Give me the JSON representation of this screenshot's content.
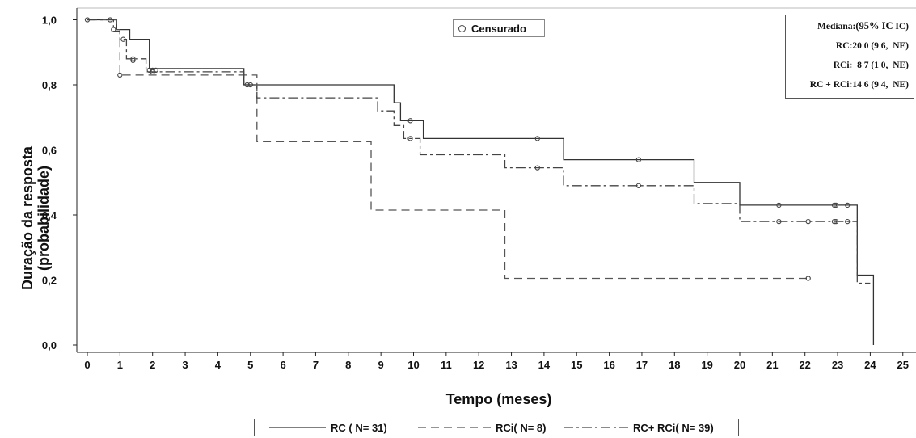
{
  "chart_data": {
    "type": "line",
    "title": "",
    "xlabel": "Tempo (meses)",
    "ylabel_line1": "Duração da resposta",
    "ylabel_line2": "(probabilidade)",
    "xlim": [
      0,
      25
    ],
    "ylim": [
      0,
      1
    ],
    "x_ticks": [
      0,
      1,
      2,
      3,
      4,
      5,
      6,
      7,
      8,
      9,
      10,
      11,
      12,
      13,
      14,
      15,
      16,
      17,
      18,
      19,
      20,
      21,
      22,
      23,
      24,
      25
    ],
    "x_tick_labels": [
      "0",
      "1",
      "2",
      "3",
      "4",
      "5",
      "6",
      "7",
      "8",
      "9",
      "10",
      "11",
      "12",
      "13",
      "14",
      "15",
      "16",
      "17",
      "18",
      "19",
      "20",
      "21",
      "22",
      "23",
      "24",
      "25"
    ],
    "y_ticks": [
      0,
      0.2,
      0.4,
      0.6,
      0.8,
      1.0
    ],
    "y_tick_labels": [
      "0,0",
      "0,2",
      "0,4",
      "0,6",
      "0,8",
      "1,0"
    ],
    "censor_legend": "Censurado",
    "median_table": {
      "header_prefix": "Mediana:",
      "header_ci": "(95% IC",
      "header_close": ")",
      "rows": [
        {
          "label": "RC:",
          "median": "20 0",
          "ci_low": "(9 6,",
          "ci_high": "NE)"
        },
        {
          "label": "RCi:",
          "median": "8 7",
          "ci_low": "(1 0,",
          "ci_high": "NE)"
        },
        {
          "label": "RC + RCi:",
          "median": "14 6",
          "ci_low": "(9 4,",
          "ci_high": "NE)"
        }
      ]
    },
    "series": [
      {
        "name": "RC",
        "legend_label": "RC",
        "n_text": "( N= 31)",
        "color": "#333333",
        "dash": "",
        "steps": [
          [
            0,
            1.0
          ],
          [
            0.9,
            0.97
          ],
          [
            1.3,
            0.94
          ],
          [
            1.9,
            0.85
          ],
          [
            4.8,
            0.8
          ],
          [
            9.4,
            0.745
          ],
          [
            9.6,
            0.69
          ],
          [
            10.3,
            0.635
          ],
          [
            14.6,
            0.57
          ],
          [
            18.6,
            0.5
          ],
          [
            20.0,
            0.43
          ],
          [
            23.6,
            0.215
          ],
          [
            24.1,
            0.0
          ]
        ],
        "end_x": 24.1,
        "censored": [
          [
            0,
            1.0
          ],
          [
            0.7,
            1.0
          ],
          [
            1.4,
            0.88
          ],
          [
            1.9,
            0.845
          ],
          [
            2.0,
            0.845
          ],
          [
            2.1,
            0.845
          ],
          [
            5.0,
            0.8
          ],
          [
            9.9,
            0.69
          ],
          [
            13.8,
            0.635
          ],
          [
            16.9,
            0.57
          ],
          [
            21.2,
            0.43
          ],
          [
            22.9,
            0.43
          ],
          [
            22.95,
            0.43
          ],
          [
            23.3,
            0.43
          ]
        ]
      },
      {
        "name": "RCi",
        "legend_label": "RCi",
        "n_text": "( N= 8)",
        "color": "#555555",
        "dash": "10,6",
        "steps": [
          [
            0,
            1.0
          ],
          [
            0.9,
            0.97
          ],
          [
            1.0,
            0.83
          ],
          [
            5.2,
            0.625
          ],
          [
            8.7,
            0.415
          ],
          [
            12.8,
            0.205
          ]
        ],
        "end_x": 22.1,
        "censored": [
          [
            0.8,
            0.97
          ],
          [
            1.0,
            0.83
          ],
          [
            22.1,
            0.205
          ]
        ]
      },
      {
        "name": "RC+ RCi",
        "legend_label": "RC+ RCi",
        "n_text": "( N= 39)",
        "color": "#444444",
        "dash": "12,4,3,4",
        "steps": [
          [
            0,
            1.0
          ],
          [
            0.8,
            0.965
          ],
          [
            1.0,
            0.94
          ],
          [
            1.2,
            0.88
          ],
          [
            1.8,
            0.84
          ],
          [
            4.8,
            0.8
          ],
          [
            5.2,
            0.76
          ],
          [
            8.9,
            0.72
          ],
          [
            9.4,
            0.675
          ],
          [
            9.7,
            0.635
          ],
          [
            10.2,
            0.585
          ],
          [
            12.8,
            0.545
          ],
          [
            14.6,
            0.49
          ],
          [
            18.6,
            0.435
          ],
          [
            20.0,
            0.38
          ],
          [
            23.6,
            0.19
          ]
        ],
        "end_x": 24.0,
        "censored": [
          [
            1.1,
            0.94
          ],
          [
            1.4,
            0.875
          ],
          [
            2.0,
            0.84
          ],
          [
            4.9,
            0.8
          ],
          [
            9.9,
            0.635
          ],
          [
            13.8,
            0.545
          ],
          [
            16.9,
            0.49
          ],
          [
            21.2,
            0.38
          ],
          [
            22.1,
            0.38
          ],
          [
            22.9,
            0.38
          ],
          [
            22.95,
            0.38
          ],
          [
            23.3,
            0.38
          ]
        ]
      }
    ]
  }
}
